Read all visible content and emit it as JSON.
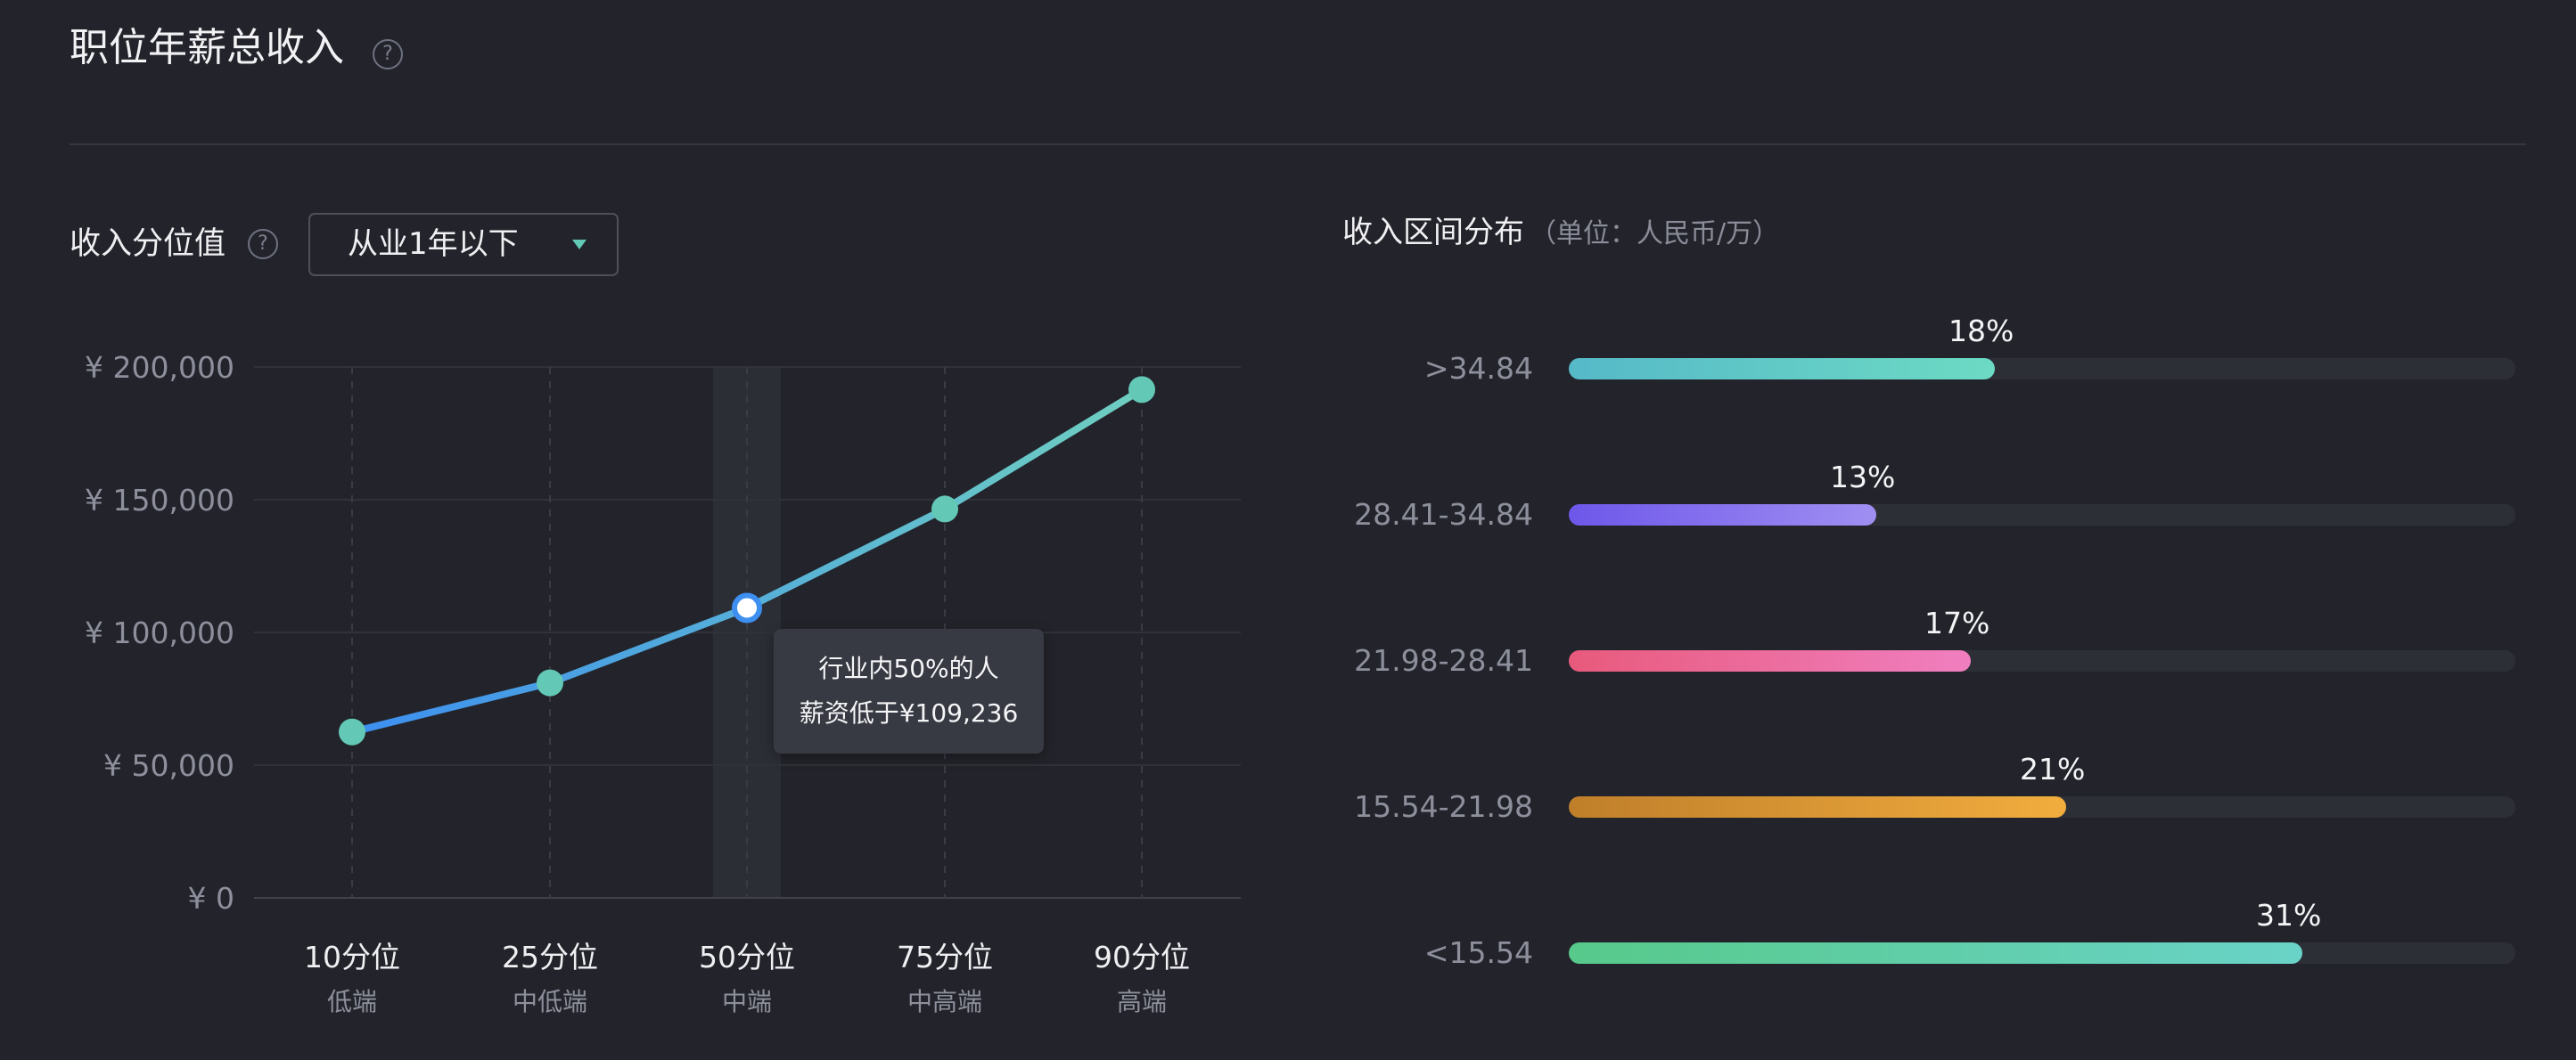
{
  "header": {
    "title": "职位年薪总收入",
    "help_glyph": "?"
  },
  "left": {
    "label": "收入分位值",
    "help_glyph": "?",
    "dropdown": {
      "selected": "从业1年以下"
    }
  },
  "tooltip": {
    "line1": "行业内50%的人",
    "line2": "薪资低于¥109,236"
  },
  "chart_data": {
    "type": "line",
    "x": [
      "10分位",
      "25分位",
      "50分位",
      "75分位",
      "90分位"
    ],
    "x_sub": [
      "低端",
      "中低端",
      "中端",
      "中高端",
      "高端"
    ],
    "y_ticks": [
      "¥ 0",
      "¥ 50,000",
      "¥ 100,000",
      "¥ 150,000",
      "¥ 200,000"
    ],
    "ylim": [
      0,
      200000
    ],
    "series": [
      {
        "values": [
          62500,
          81000,
          109236,
          146500,
          191500
        ]
      }
    ],
    "highlight_index": 2,
    "grid": true,
    "colors": {
      "line_start": "#3d8ff0",
      "line_end": "#6fcfc0",
      "marker": "#63c8b6",
      "highlight_ring": "#3d8ff0"
    }
  },
  "right": {
    "title": "收入区间分布",
    "unit": "（单位：人民币/万）",
    "rows": [
      {
        "label": ">34.84",
        "pct_text": "18%",
        "value": 0.45,
        "color_from": "#56b9c8",
        "color_to": "#6cdac4"
      },
      {
        "label": "28.41-34.84",
        "pct_text": "13%",
        "value": 0.325,
        "color_from": "#6d57ea",
        "color_to": "#a08ff2"
      },
      {
        "label": "21.98-28.41",
        "pct_text": "17%",
        "value": 0.425,
        "color_from": "#e85a7c",
        "color_to": "#f07fc0"
      },
      {
        "label": "15.54-21.98",
        "pct_text": "21%",
        "value": 0.525,
        "color_from": "#bf7f2a",
        "color_to": "#f2ad3e"
      },
      {
        "label": "<15.54",
        "pct_text": "31%",
        "value": 0.775,
        "color_from": "#57c98a",
        "color_to": "#6ad3c8"
      }
    ]
  }
}
